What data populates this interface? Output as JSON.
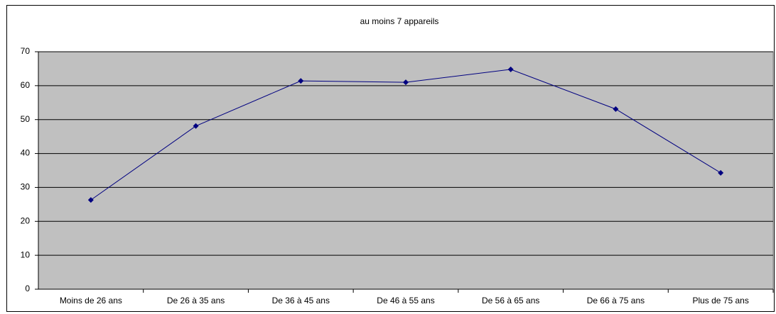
{
  "chart_data": {
    "type": "line",
    "title": "au moins 7 appareils",
    "categories": [
      "Moins de 26 ans",
      "De 26 à 35 ans",
      "De 36 à 45 ans",
      "De 46 à 55 ans",
      "De 56 à 65 ans",
      "De 66 à 75 ans",
      "Plus de 75 ans"
    ],
    "series": [
      {
        "name": "au moins 7 appareils",
        "color": "#000080",
        "values": [
          26.3,
          48.1,
          61.4,
          61.0,
          64.8,
          53.1,
          34.3
        ]
      }
    ],
    "ylim": [
      0,
      70
    ],
    "yticks": [
      0,
      10,
      20,
      30,
      40,
      50,
      60,
      70
    ],
    "grid": true
  }
}
